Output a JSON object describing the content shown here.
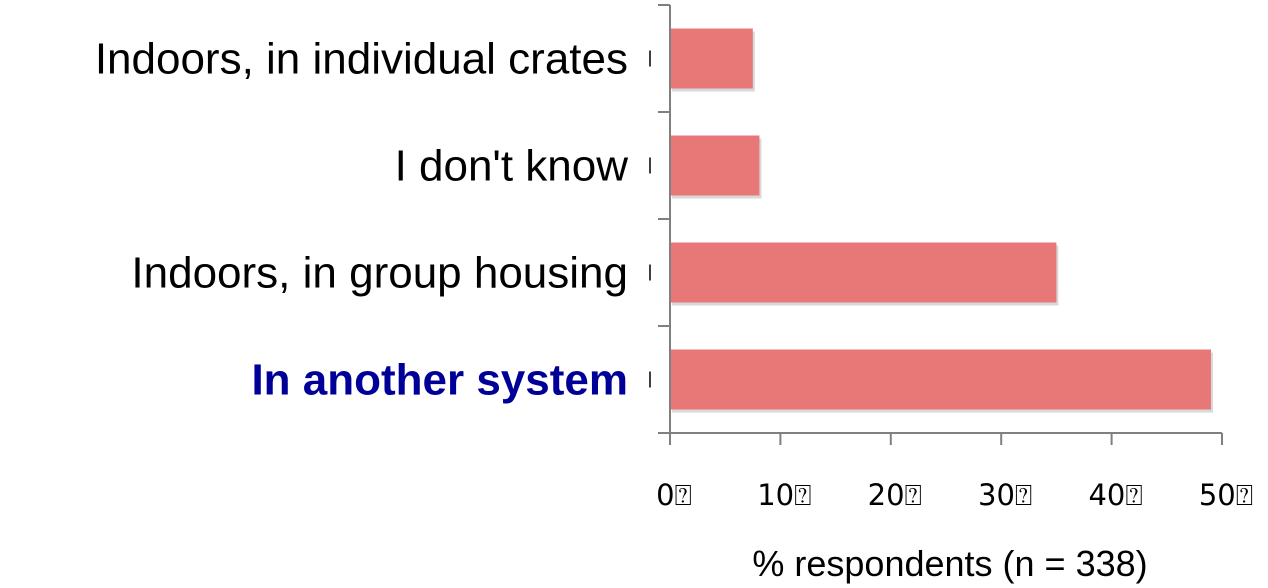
{
  "chart_data": {
    "type": "bar",
    "orientation": "horizontal",
    "categories": [
      "Indoors, in individual crates",
      "I don't know",
      "Indoors, in group housing",
      "In another system"
    ],
    "values": [
      7.5,
      8.1,
      35,
      49
    ],
    "highlight_category": "In another system",
    "xlabel": "% respondents (n = 338)",
    "ylabel": "",
    "xlim": [
      0,
      50
    ],
    "x_ticks": [
      "0⍰",
      "10⍰",
      "20⍰",
      "30⍰",
      "40⍰",
      "50⍰"
    ],
    "grid": false,
    "bar_color": "#e87878",
    "highlight_label_color": "#000099"
  }
}
